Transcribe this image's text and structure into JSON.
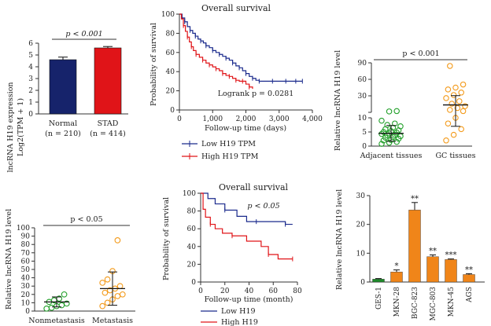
{
  "chart_data": [
    {
      "id": "A",
      "type": "bar",
      "ylabel_line1": "lncRNA H19 expression",
      "ylabel_line2": "Log2(TPM + 1)",
      "ylim": [
        0,
        6
      ],
      "yticks": [
        "0",
        "1",
        "2",
        "3",
        "4",
        "5",
        "6"
      ],
      "categories": [
        "Normal",
        "STAD"
      ],
      "category_n": [
        "(n = 210)",
        "(n = 414)"
      ],
      "values": [
        4.6,
        5.6
      ],
      "errors": [
        0.22,
        0.12
      ],
      "colors": [
        "#16236b",
        "#e01418"
      ],
      "annotation": "p < 0.001"
    },
    {
      "id": "B",
      "type": "line",
      "title": "Overall survival",
      "xlabel": "Follow-up time (days)",
      "ylabel": "Probability of survival",
      "xlim": [
        0,
        4000
      ],
      "ylim": [
        0,
        100
      ],
      "xticks": [
        "0",
        "1,000",
        "2,000",
        "3,000",
        "4,000"
      ],
      "yticks": [
        "0",
        "20",
        "40",
        "60",
        "80",
        "100"
      ],
      "annotation": "Logrank p = 0.0281",
      "legend": [
        "Low H19 TPM",
        "High H19 TPM"
      ],
      "series": [
        {
          "name": "Low H19 TPM",
          "color": "#1a2a8c",
          "x": [
            0,
            80,
            160,
            240,
            320,
            400,
            480,
            560,
            640,
            720,
            800,
            900,
            1000,
            1100,
            1200,
            1300,
            1400,
            1500,
            1600,
            1700,
            1800,
            1900,
            2000,
            2100,
            2200,
            2300,
            2400,
            2600,
            2800,
            3000,
            3200,
            3400,
            3500,
            3600,
            3700
          ],
          "y": [
            100,
            96,
            92,
            87,
            83,
            80,
            77,
            74,
            72,
            70,
            67,
            65,
            62,
            60,
            58,
            56,
            54,
            52,
            49,
            46,
            44,
            41,
            38,
            35,
            33,
            31,
            30,
            30,
            30,
            30,
            30,
            30,
            30,
            30,
            30
          ]
        },
        {
          "name": "High H19 TPM",
          "color": "#e01418",
          "x": [
            0,
            60,
            120,
            180,
            240,
            300,
            360,
            420,
            500,
            600,
            700,
            800,
            900,
            1000,
            1100,
            1200,
            1300,
            1400,
            1500,
            1600,
            1700,
            1800,
            1900,
            2000,
            2100,
            2200
          ],
          "y": [
            100,
            95,
            88,
            82,
            76,
            71,
            66,
            62,
            58,
            55,
            52,
            49,
            47,
            45,
            43,
            41,
            38,
            36,
            35,
            33,
            31,
            30,
            30,
            27,
            24,
            22
          ]
        }
      ]
    },
    {
      "id": "C",
      "type": "scatter",
      "ylabel": "Relative lncRNA H19 level",
      "ylim": [
        0,
        90
      ],
      "yticks": [
        "0",
        "5",
        "10",
        "30",
        "60",
        "90"
      ],
      "categories": [
        "Adjacent tissues",
        "GC tissues"
      ],
      "annotation": "p < 0.001",
      "groups": [
        {
          "name": "Adjacent tissues",
          "color": "#22a02a",
          "mean": 4.5,
          "sd": 2.8,
          "values": [
            0.8,
            1.2,
            1.5,
            2,
            2.2,
            2.6,
            3,
            3.2,
            3.5,
            3.8,
            4,
            4.3,
            4.5,
            4.8,
            5,
            5.3,
            5.6,
            6,
            6.5,
            7,
            7.5,
            8,
            9,
            11.5,
            12
          ]
        },
        {
          "name": "GC tissues",
          "color": "#f39a1a",
          "mean": 22,
          "sd": 15,
          "values": [
            2,
            4,
            6,
            8,
            10,
            12,
            14,
            17,
            20,
            24,
            28,
            33,
            38,
            42,
            47,
            50,
            55,
            85
          ]
        }
      ]
    },
    {
      "id": "D",
      "type": "scatter",
      "ylabel": "Relative lncRNA H19 level",
      "ylim": [
        0,
        100
      ],
      "yticks": [
        "0",
        "10",
        "20",
        "30",
        "40",
        "50",
        "60",
        "70",
        "80",
        "90",
        "100"
      ],
      "categories": [
        "Nonmetastasis",
        "Metastasis"
      ],
      "annotation": "p < 0.05",
      "groups": [
        {
          "name": "Nonmetastasis",
          "color": "#22a02a",
          "mean": 11,
          "sd": 6,
          "values": [
            3,
            4,
            6,
            7,
            9,
            11,
            13,
            15,
            20
          ]
        },
        {
          "name": "Metastasis",
          "color": "#f39a1a",
          "mean": 27,
          "sd": 20,
          "values": [
            6,
            10,
            14,
            18,
            20,
            22,
            25,
            27,
            30,
            34,
            38,
            48,
            85
          ]
        }
      ]
    },
    {
      "id": "E",
      "type": "line",
      "title": "Overall survival",
      "xlabel": "Follow-up time (month)",
      "ylabel": "Probability of survival",
      "xlim": [
        0,
        80
      ],
      "ylim": [
        0,
        100
      ],
      "xticks": [
        "0",
        "20",
        "40",
        "60",
        "80"
      ],
      "yticks": [
        "0",
        "20",
        "40",
        "60",
        "80",
        "100"
      ],
      "annotation": "p < 0.05",
      "legend": [
        "Low H19",
        "High H19"
      ],
      "series": [
        {
          "name": "Low H19",
          "color": "#1a2a8c",
          "x": [
            0,
            6,
            12,
            20,
            30,
            38,
            46,
            58,
            66,
            70,
            76
          ],
          "y": [
            100,
            94,
            88,
            81,
            74,
            68,
            68,
            68,
            68,
            65,
            65
          ]
        },
        {
          "name": "High H19",
          "color": "#e01418",
          "x": [
            0,
            2,
            4,
            8,
            12,
            18,
            26,
            38,
            50,
            56,
            64,
            70,
            76
          ],
          "y": [
            100,
            82,
            73,
            65,
            60,
            55,
            52,
            46,
            40,
            31,
            26,
            26,
            26
          ]
        }
      ]
    },
    {
      "id": "F",
      "type": "bar",
      "ylabel": "Relative lncRNA H19 level",
      "ylim": [
        0,
        30
      ],
      "yticks": [
        "0",
        "10",
        "20",
        "30"
      ],
      "categories": [
        "GES-1",
        "MKN-28",
        "BGC-823",
        "MGC-803",
        "MKN-45",
        "AGS"
      ],
      "values": [
        1,
        3.5,
        25,
        8.8,
        7.8,
        2.6
      ],
      "errors": [
        0.2,
        0.7,
        2.6,
        0.6,
        0.2,
        0.3
      ],
      "significance": [
        "",
        "*",
        "**",
        "**",
        "***",
        "**"
      ],
      "colors": [
        "#1f8a2a",
        "#f08519",
        "#f08519",
        "#f08519",
        "#f08519",
        "#f08519"
      ]
    }
  ]
}
